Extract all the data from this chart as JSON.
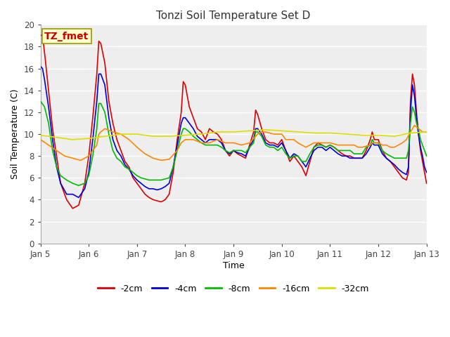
{
  "title": "Tonzi Soil Temperature Set D",
  "xlabel": "Time",
  "ylabel": "Soil Temperature (C)",
  "annotation": "TZ_fmet",
  "ylim": [
    0,
    20
  ],
  "xlim": [
    0,
    192
  ],
  "xtick_positions": [
    0,
    24,
    48,
    72,
    96,
    120,
    144,
    168,
    192
  ],
  "xtick_labels": [
    "Jan 5",
    "Jan 6",
    "Jan 7",
    "Jan 8",
    "Jan 9",
    "Jan 10",
    "Jan 11",
    "Jan 12",
    "Jan 13"
  ],
  "ytick_positions": [
    0,
    2,
    4,
    6,
    8,
    10,
    12,
    14,
    16,
    18,
    20
  ],
  "line_colors": {
    "2cm": "#dd0000",
    "4cm": "#0000dd",
    "8cm": "#00bb00",
    "16cm": "#ff8800",
    "32cm": "#dddd00"
  },
  "line_labels": [
    "-2cm",
    "-4cm",
    "-8cm",
    "-16cm",
    "-32cm"
  ],
  "bg_color": "#ffffff",
  "plot_bg_color": "#eeeeee",
  "grid_color": "#ffffff",
  "annotation_bg": "#ffffcc",
  "annotation_border": "#999900",
  "annotation_text_color": "#cc0000"
}
